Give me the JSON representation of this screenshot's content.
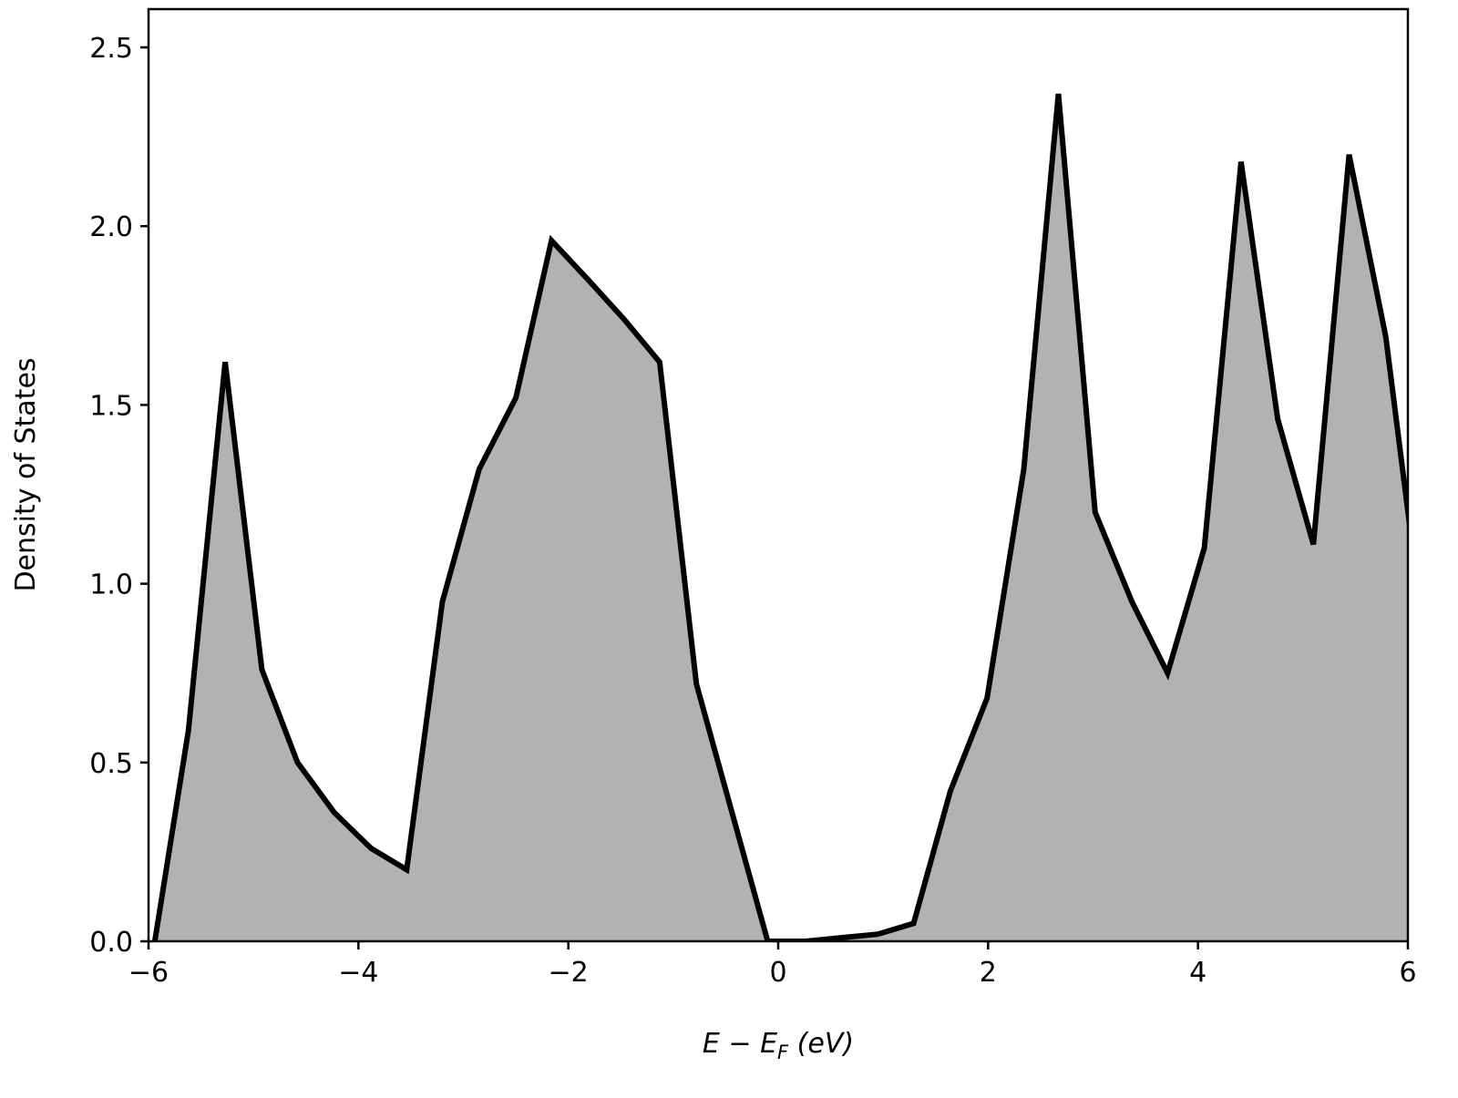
{
  "chart_data": {
    "type": "area",
    "title": "",
    "xlabel": "E − E_F (eV)",
    "ylabel": "Density of States",
    "xlim": [
      -6,
      6
    ],
    "ylim": [
      0,
      2.6
    ],
    "xticks": [
      -6,
      -4,
      -2,
      0,
      2,
      4,
      6
    ],
    "xtick_labels": [
      "−6",
      "−4",
      "−2",
      "0",
      "2",
      "4",
      "6"
    ],
    "yticks": [
      0,
      0.5,
      1.0,
      1.5,
      2.0,
      2.5
    ],
    "ytick_labels": [
      "0.0",
      "0.5",
      "1.0",
      "1.5",
      "2.0",
      "2.5"
    ],
    "grid": false,
    "line_color": "#000000",
    "fill_color": "#b2b2b2",
    "series": [
      {
        "x": [
          -5.94,
          -5.62,
          -5.27,
          -4.92,
          -4.58,
          -4.23,
          -3.88,
          -3.54,
          -3.2,
          -2.85,
          -2.5,
          -2.16,
          -1.81,
          -1.47,
          -1.13,
          -0.78,
          -0.44,
          -0.1,
          0.26,
          0.6,
          0.95,
          1.29,
          1.64,
          1.99,
          2.34,
          2.67,
          3.02,
          3.37,
          3.71,
          4.06,
          4.41,
          4.76,
          5.1,
          5.44,
          5.79,
          6.13
        ],
        "y": [
          0.0,
          0.59,
          1.62,
          0.76,
          0.5,
          0.36,
          0.26,
          0.2,
          0.95,
          1.32,
          1.52,
          1.96,
          1.85,
          1.74,
          1.62,
          0.72,
          0.36,
          0.0,
          0.0,
          0.01,
          0.02,
          0.05,
          0.42,
          0.68,
          1.32,
          2.37,
          1.2,
          0.95,
          0.75,
          1.1,
          2.18,
          1.46,
          1.11,
          2.2,
          1.69,
          0.9
        ]
      }
    ]
  }
}
